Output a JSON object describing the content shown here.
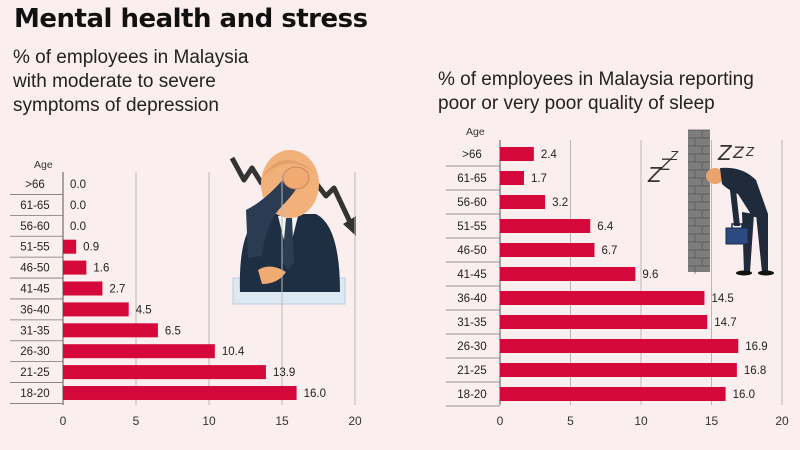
{
  "title": "Mental health and stress",
  "colors": {
    "bar": "#d4083a",
    "grid": "#b8b8b8",
    "axis": "#555555",
    "background": "#fbeeee"
  },
  "icons": {
    "left": "stressed-man-illustration",
    "right": "sleepy-man-illustration"
  },
  "chart_data": [
    {
      "type": "bar",
      "orientation": "horizontal",
      "title": "% of employees in Malaysia with moderate to severe symptoms of depression",
      "ylabel": "Age",
      "categories": [
        ">66",
        "61-65",
        "56-60",
        "51-55",
        "46-50",
        "41-45",
        "36-40",
        "31-35",
        "26-30",
        "21-25",
        "18-20"
      ],
      "values": [
        0.0,
        0.0,
        0.0,
        0.9,
        1.6,
        2.7,
        4.5,
        6.5,
        10.4,
        13.9,
        16.0
      ],
      "value_labels": [
        "0.0",
        "0.0",
        "0.0",
        "0.9",
        "1.6",
        "2.7",
        "4.5",
        "6.5",
        "10.4",
        "13.9",
        "16.0"
      ],
      "xlim": [
        0,
        20
      ],
      "xticks": [
        0,
        5,
        10,
        15,
        20
      ],
      "grid": true
    },
    {
      "type": "bar",
      "orientation": "horizontal",
      "title": "% of employees in Malaysia reporting poor or very poor quality of sleep",
      "ylabel": "Age",
      "categories": [
        ">66",
        "61-65",
        "56-60",
        "51-55",
        "46-50",
        "41-45",
        "36-40",
        "31-35",
        "26-30",
        "21-25",
        "18-20"
      ],
      "values": [
        2.4,
        1.7,
        3.2,
        6.4,
        6.7,
        9.6,
        14.5,
        14.7,
        16.9,
        16.8,
        16.0
      ],
      "value_labels": [
        "2.4",
        "1.7",
        "3.2",
        "6.4",
        "6.7",
        "9.6",
        "14.5",
        "14.7",
        "16.9",
        "16.8",
        "16.0"
      ],
      "xlim": [
        0,
        20
      ],
      "xticks": [
        0,
        5,
        10,
        15,
        20
      ],
      "grid": true
    }
  ]
}
